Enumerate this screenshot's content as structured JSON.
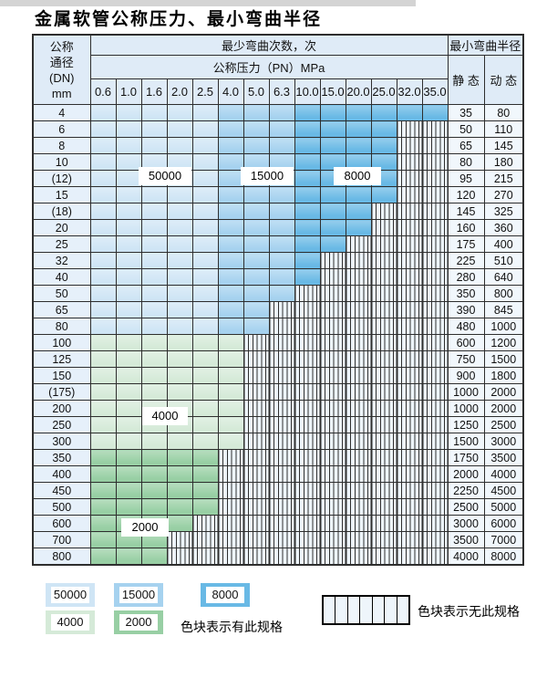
{
  "title": "金属软管公称压力、最小弯曲半径",
  "colors": {
    "c50000": "#cfe5f5",
    "c15000": "#a6d2ef",
    "c8000": "#69b9e5",
    "c4000": "#d5ead8",
    "c2000": "#98cfa4",
    "hatch_bg": "#eef5fb",
    "header_bg": "#dfebf7",
    "dn_bg": "#e6f0fa",
    "val_bg": "#f1f7fc",
    "grid": "#2e2e2e"
  },
  "table": {
    "header": {
      "dn_label_lines": [
        "公称",
        "通径",
        "(DN)",
        "mm"
      ],
      "cycles_header": "最少弯曲次数，次",
      "pressure_header": "公称压力（PN）MPa",
      "pressure_values": [
        "0.6",
        "1.0",
        "1.6",
        "2.0",
        "2.5",
        "4.0",
        "5.0",
        "6.3",
        "10.0",
        "15.0",
        "20.0",
        "25.0",
        "32.0",
        "35.0"
      ],
      "radius_header": "最小弯曲半径",
      "static_label": "静 态",
      "dynamic_label": "动 态"
    },
    "cycle_regions": {
      "blue_by_pressure_columns": {
        "50000": [
          "0.6",
          "1.0",
          "1.6",
          "2.0",
          "2.5"
        ],
        "15000": [
          "4.0",
          "5.0",
          "6.3",
          "10.0"
        ],
        "8000": [
          "15.0",
          "20.0",
          "25.0",
          "32.0",
          "35.0"
        ]
      },
      "green_by_dn_rows": {
        "4000": [
          "100",
          "125",
          "150",
          "(175)",
          "200",
          "250",
          "300"
        ],
        "2000": [
          "350",
          "400",
          "450",
          "500",
          "600",
          "700",
          "800"
        ]
      }
    },
    "rows": [
      {
        "dn": "4",
        "static": "35",
        "dynamic": "80",
        "max_col": 14,
        "group": "blue"
      },
      {
        "dn": "6",
        "static": "50",
        "dynamic": "110",
        "max_col": 12,
        "group": "blue"
      },
      {
        "dn": "8",
        "static": "65",
        "dynamic": "145",
        "max_col": 12,
        "group": "blue"
      },
      {
        "dn": "10",
        "static": "80",
        "dynamic": "180",
        "max_col": 12,
        "group": "blue"
      },
      {
        "dn": "(12)",
        "static": "95",
        "dynamic": "215",
        "max_col": 12,
        "group": "blue"
      },
      {
        "dn": "15",
        "static": "120",
        "dynamic": "270",
        "max_col": 12,
        "group": "blue"
      },
      {
        "dn": "(18)",
        "static": "145",
        "dynamic": "325",
        "max_col": 11,
        "group": "blue"
      },
      {
        "dn": "20",
        "static": "160",
        "dynamic": "360",
        "max_col": 11,
        "group": "blue"
      },
      {
        "dn": "25",
        "static": "175",
        "dynamic": "400",
        "max_col": 10,
        "group": "blue"
      },
      {
        "dn": "32",
        "static": "225",
        "dynamic": "510",
        "max_col": 9,
        "group": "blue"
      },
      {
        "dn": "40",
        "static": "280",
        "dynamic": "640",
        "max_col": 9,
        "group": "blue"
      },
      {
        "dn": "50",
        "static": "350",
        "dynamic": "800",
        "max_col": 8,
        "group": "blue"
      },
      {
        "dn": "65",
        "static": "390",
        "dynamic": "845",
        "max_col": 7,
        "group": "blue"
      },
      {
        "dn": "80",
        "static": "480",
        "dynamic": "1000",
        "max_col": 7,
        "group": "blue"
      },
      {
        "dn": "100",
        "static": "600",
        "dynamic": "1200",
        "max_col": 6,
        "group": "g4000"
      },
      {
        "dn": "125",
        "static": "750",
        "dynamic": "1500",
        "max_col": 6,
        "group": "g4000"
      },
      {
        "dn": "150",
        "static": "900",
        "dynamic": "1800",
        "max_col": 6,
        "group": "g4000"
      },
      {
        "dn": "(175)",
        "static": "1000",
        "dynamic": "2000",
        "max_col": 6,
        "group": "g4000"
      },
      {
        "dn": "200",
        "static": "1000",
        "dynamic": "2000",
        "max_col": 6,
        "group": "g4000"
      },
      {
        "dn": "250",
        "static": "1250",
        "dynamic": "2500",
        "max_col": 6,
        "group": "g4000"
      },
      {
        "dn": "300",
        "static": "1500",
        "dynamic": "3000",
        "max_col": 6,
        "group": "g4000"
      },
      {
        "dn": "350",
        "static": "1750",
        "dynamic": "3500",
        "max_col": 5,
        "group": "g2000"
      },
      {
        "dn": "400",
        "static": "2000",
        "dynamic": "4000",
        "max_col": 5,
        "group": "g2000"
      },
      {
        "dn": "450",
        "static": "2250",
        "dynamic": "4500",
        "max_col": 5,
        "group": "g2000"
      },
      {
        "dn": "500",
        "static": "2500",
        "dynamic": "5000",
        "max_col": 5,
        "group": "g2000"
      },
      {
        "dn": "600",
        "static": "3000",
        "dynamic": "6000",
        "max_col": 4,
        "group": "g2000"
      },
      {
        "dn": "700",
        "static": "3500",
        "dynamic": "7000",
        "max_col": 3,
        "group": "g2000"
      },
      {
        "dn": "800",
        "static": "4000",
        "dynamic": "8000",
        "max_col": 3,
        "group": "g2000"
      }
    ]
  },
  "overlay_labels": [
    {
      "text": "50000"
    },
    {
      "text": "15000"
    },
    {
      "text": "8000"
    },
    {
      "text": "4000"
    },
    {
      "text": "2000"
    }
  ],
  "legend": {
    "items": [
      {
        "label": "50000",
        "color_key": "c50000"
      },
      {
        "label": "15000",
        "color_key": "c15000"
      },
      {
        "label": "8000",
        "color_key": "c8000"
      },
      {
        "label": "4000",
        "color_key": "c4000"
      },
      {
        "label": "2000",
        "color_key": "c2000"
      }
    ],
    "available_text": "色块表示有此规格",
    "unavailable_text": "色块表示无此规格",
    "no_spec_cells": 7
  }
}
